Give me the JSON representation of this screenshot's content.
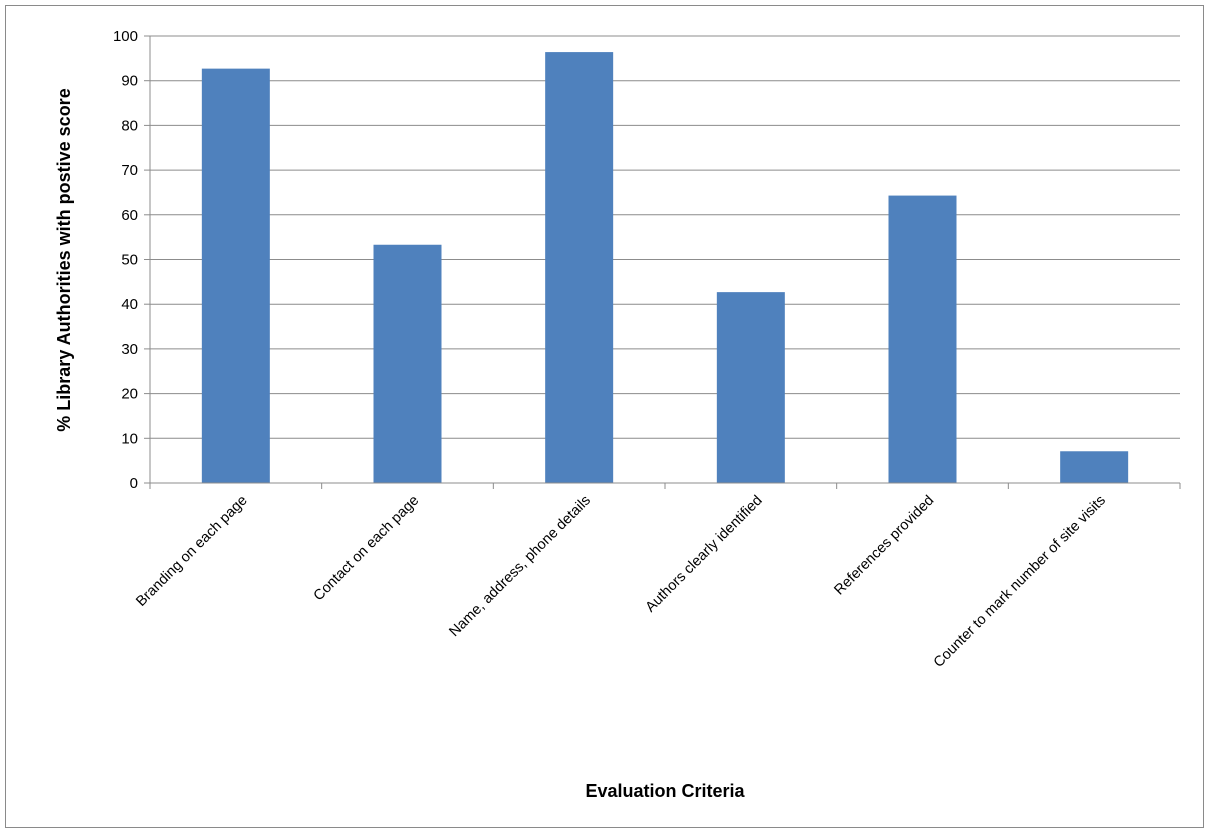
{
  "chart_data": {
    "type": "bar",
    "categories": [
      "Branding on each page",
      "Contact on each page",
      "Name, address, phone details",
      "Authors clearly identified",
      "References provided",
      "Counter to mark number of site visits"
    ],
    "values": [
      92.7,
      53.3,
      96.4,
      42.7,
      64.3,
      7.1
    ],
    "title": "",
    "xlabel": "Evaluation Criteria",
    "ylabel": "% Library Authorities with postive score",
    "ylim": [
      0,
      100
    ],
    "yticks": [
      0,
      10,
      20,
      30,
      40,
      50,
      60,
      70,
      80,
      90,
      100
    ],
    "grid": true,
    "legend": "none",
    "bar_color": "#4f81bd",
    "grid_color": "#8c8c8c"
  }
}
